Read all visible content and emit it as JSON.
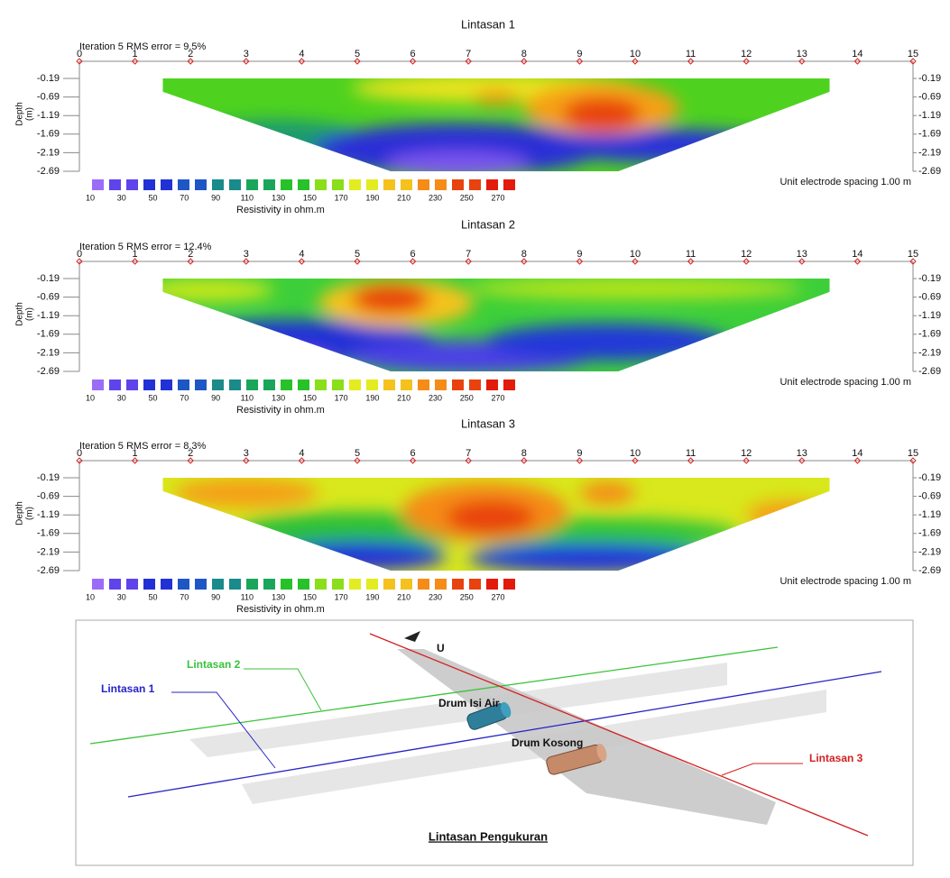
{
  "panels": [
    {
      "title": "Lintasan 1",
      "rms": "Iteration 5 RMS error = 9.5%"
    },
    {
      "title": "Lintasan 2",
      "rms": "Iteration 5 RMS error = 12.4%"
    },
    {
      "title": "Lintasan 3",
      "rms": "Iteration 5 RMS error = 8.3%"
    }
  ],
  "x_ticks": [
    0,
    1,
    2,
    3,
    4,
    5,
    6,
    7,
    8,
    9,
    10,
    11,
    12,
    13,
    14,
    15
  ],
  "depth_ticks": [
    -0.19,
    -0.69,
    -1.19,
    -1.69,
    -2.19,
    -2.69
  ],
  "depth_label": [
    "Depth",
    "(m)"
  ],
  "legend": {
    "values": [
      10,
      30,
      50,
      70,
      90,
      110,
      130,
      150,
      170,
      190,
      210,
      230,
      250,
      270
    ],
    "label": "Resistivity in ohm.m"
  },
  "spacing_note": "Unit electrode spacing 1.00 m",
  "diagram": {
    "north": "U",
    "line1": "Lintasan 1",
    "line2": "Lintasan 2",
    "line3": "Lintasan 3",
    "drum_water": "Drum Isi Air",
    "drum_empty": "Drum Kosong",
    "caption": "Lintasan Pengukuran"
  }
}
